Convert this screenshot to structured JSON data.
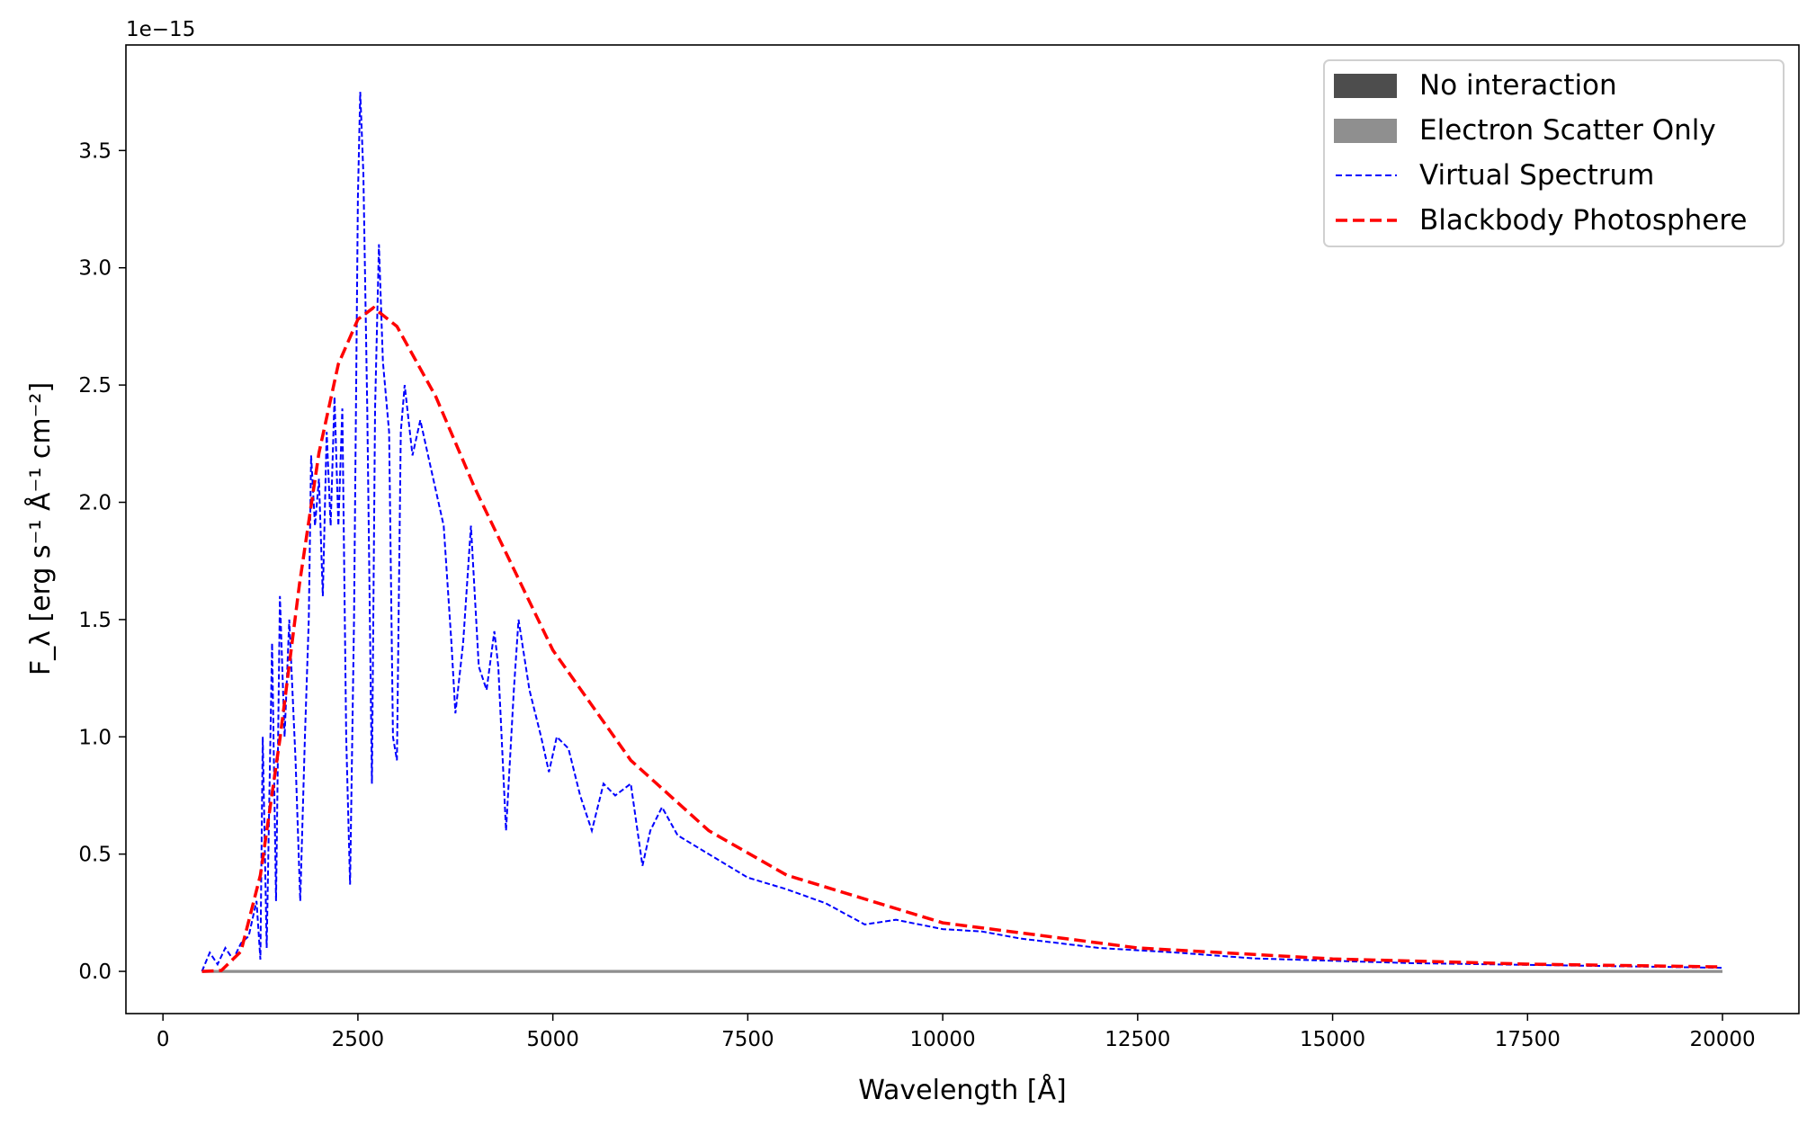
{
  "chart_data": {
    "type": "line",
    "title": "",
    "xlabel": "Wavelength [Å]",
    "ylabel": "F_λ [erg s⁻¹ Å⁻¹ cm⁻²]",
    "y_offset_label": "1e−15",
    "xlim": [
      -475,
      20980
    ],
    "ylim": [
      -0.18,
      3.95
    ],
    "grid": false,
    "legend_placement": "top-right",
    "x_ticks": [
      0,
      2500,
      5000,
      7500,
      10000,
      12500,
      15000,
      17500,
      20000
    ],
    "x_tick_labels": [
      "0",
      "2500",
      "5000",
      "7500",
      "10000",
      "12500",
      "15000",
      "17500",
      "20000"
    ],
    "y_ticks": [
      0,
      0.5,
      1.0,
      1.5,
      2.0,
      2.5,
      3.0,
      3.5
    ],
    "y_tick_labels": [
      "0.0",
      "0.5",
      "1.0",
      "1.5",
      "2.0",
      "2.5",
      "3.0",
      "3.5"
    ],
    "series": [
      {
        "name": "No interaction",
        "style": "filled",
        "color": "#4d4d4d",
        "x": [
          500,
          20000
        ],
        "y": [
          0,
          0
        ]
      },
      {
        "name": "Electron Scatter Only",
        "style": "filled",
        "color": "#8f8f8f",
        "x": [
          500,
          20000
        ],
        "y": [
          0,
          0
        ]
      },
      {
        "name": "Virtual Spectrum",
        "style": "dashed",
        "color": "#0000ff",
        "x": [
          500,
          600,
          700,
          800,
          900,
          1000,
          1100,
          1200,
          1250,
          1280,
          1330,
          1400,
          1450,
          1500,
          1560,
          1620,
          1700,
          1760,
          1820,
          1870,
          1900,
          1950,
          2000,
          2050,
          2100,
          2150,
          2200,
          2250,
          2300,
          2350,
          2400,
          2450,
          2500,
          2530,
          2570,
          2620,
          2680,
          2720,
          2770,
          2820,
          2900,
          2950,
          3000,
          3050,
          3100,
          3200,
          3300,
          3400,
          3500,
          3600,
          3700,
          3750,
          3850,
          3950,
          4050,
          4150,
          4250,
          4300,
          4400,
          4500,
          4560,
          4700,
          4850,
          4950,
          5050,
          5200,
          5350,
          5500,
          5650,
          5800,
          6000,
          6150,
          6250,
          6400,
          6600,
          7000,
          7500,
          8000,
          8500,
          9000,
          9400,
          10000,
          10500,
          11000,
          12000,
          13000,
          14000,
          15000,
          16000,
          18000,
          20000
        ],
        "y": [
          0,
          0.08,
          0.03,
          0.1,
          0.05,
          0.12,
          0.15,
          0.3,
          0.05,
          1.0,
          0.1,
          1.4,
          0.3,
          1.6,
          1.0,
          1.5,
          0.9,
          0.3,
          1.0,
          1.5,
          2.2,
          1.9,
          2.1,
          1.6,
          2.3,
          1.9,
          2.45,
          1.9,
          2.4,
          1.0,
          0.37,
          1.5,
          3.3,
          3.75,
          3.4,
          2.4,
          0.8,
          2.4,
          3.1,
          2.6,
          2.3,
          1.0,
          0.9,
          2.3,
          2.5,
          2.2,
          2.35,
          2.2,
          2.05,
          1.9,
          1.4,
          1.1,
          1.4,
          1.9,
          1.3,
          1.2,
          1.45,
          1.3,
          0.6,
          1.2,
          1.5,
          1.2,
          1.0,
          0.85,
          1.0,
          0.95,
          0.75,
          0.6,
          0.8,
          0.75,
          0.8,
          0.45,
          0.6,
          0.7,
          0.58,
          0.5,
          0.4,
          0.35,
          0.29,
          0.2,
          0.22,
          0.18,
          0.17,
          0.14,
          0.1,
          0.08,
          0.055,
          0.045,
          0.035,
          0.025,
          0.015
        ]
      },
      {
        "name": "Blackbody Photosphere",
        "style": "dashed",
        "color": "#ff0000",
        "x": [
          500,
          750,
          1000,
          1250,
          1500,
          1750,
          2000,
          2250,
          2500,
          2700,
          3000,
          3500,
          4000,
          5000,
          6000,
          7000,
          8000,
          10000,
          12500,
          15000,
          17500,
          20000
        ],
        "y": [
          0,
          0.004,
          0.085,
          0.41,
          0.99,
          1.65,
          2.21,
          2.59,
          2.78,
          2.83,
          2.75,
          2.45,
          2.06,
          1.37,
          0.9,
          0.6,
          0.41,
          0.207,
          0.1,
          0.053,
          0.031,
          0.019
        ]
      }
    ]
  }
}
